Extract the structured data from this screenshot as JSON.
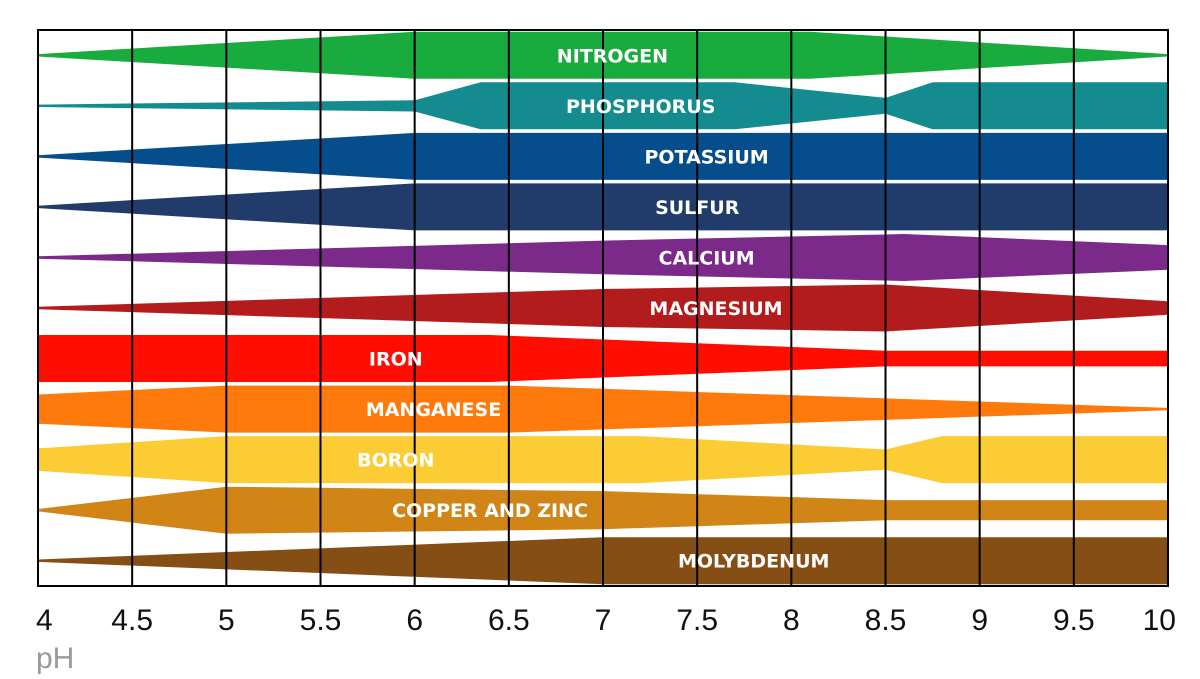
{
  "chart_data": {
    "type": "area",
    "title": "",
    "xlabel": "pH",
    "ylabel": "",
    "xlim": [
      4,
      10
    ],
    "x_ticks": [
      {
        "value": 4,
        "label": "4"
      },
      {
        "value": 4.5,
        "label": "4.5"
      },
      {
        "value": 5,
        "label": "5"
      },
      {
        "value": 5.5,
        "label": "5.5"
      },
      {
        "value": 6,
        "label": "6"
      },
      {
        "value": 6.5,
        "label": "6.5"
      },
      {
        "value": 7,
        "label": "7"
      },
      {
        "value": 7.5,
        "label": "7.5"
      },
      {
        "value": 8,
        "label": "8"
      },
      {
        "value": 8.5,
        "label": "8.5"
      },
      {
        "value": 9,
        "label": "9"
      },
      {
        "value": 9.5,
        "label": "9.5"
      },
      {
        "value": 10,
        "label": "10"
      }
    ],
    "grid": "vertical",
    "series": [
      {
        "name": "NITROGEN",
        "color": "#1aab3f",
        "label_ph": 7.05,
        "availability": [
          [
            4.0,
            0.0
          ],
          [
            6.0,
            1.0
          ],
          [
            8.1,
            1.0
          ],
          [
            10.0,
            0.0
          ]
        ]
      },
      {
        "name": "PHOSPHORUS",
        "color": "#148c8f",
        "label_ph": 7.2,
        "availability": [
          [
            4.0,
            0.0
          ],
          [
            6.0,
            0.2
          ],
          [
            6.35,
            1.0
          ],
          [
            7.7,
            1.0
          ],
          [
            8.5,
            0.3
          ],
          [
            8.75,
            1.0
          ],
          [
            10.0,
            1.0
          ]
        ]
      },
      {
        "name": "POTASSIUM",
        "color": "#064d8c",
        "label_ph": 7.55,
        "availability": [
          [
            4.0,
            0.0
          ],
          [
            6.0,
            1.0
          ],
          [
            10.0,
            1.0
          ]
        ]
      },
      {
        "name": "SULFUR",
        "color": "#213c6b",
        "label_ph": 7.5,
        "availability": [
          [
            4.0,
            0.0
          ],
          [
            6.0,
            1.0
          ],
          [
            10.0,
            1.0
          ]
        ]
      },
      {
        "name": "CALCIUM",
        "color": "#7b2a8a",
        "label_ph": 7.55,
        "availability": [
          [
            4.0,
            0.0
          ],
          [
            7.0,
            0.7
          ],
          [
            8.6,
            1.0
          ],
          [
            10.0,
            0.5
          ]
        ]
      },
      {
        "name": "MAGNESIUM",
        "color": "#b31c1c",
        "label_ph": 7.6,
        "availability": [
          [
            4.0,
            0.0
          ],
          [
            7.0,
            0.8
          ],
          [
            8.5,
            1.0
          ],
          [
            10.0,
            0.25
          ]
        ]
      },
      {
        "name": "IRON",
        "color": "#ff0d00",
        "label_ph": 5.9,
        "availability": [
          [
            4.0,
            1.0
          ],
          [
            6.4,
            1.0
          ],
          [
            8.5,
            0.3
          ],
          [
            10.0,
            0.3
          ]
        ]
      },
      {
        "name": "MANGANESE",
        "color": "#ff7a0d",
        "label_ph": 6.1,
        "availability": [
          [
            4.0,
            0.6
          ],
          [
            5.0,
            1.0
          ],
          [
            6.5,
            1.0
          ],
          [
            10.0,
            0.0
          ]
        ]
      },
      {
        "name": "BORON",
        "color": "#fccc35",
        "label_ph": 5.9,
        "availability": [
          [
            4.0,
            0.45
          ],
          [
            5.0,
            1.0
          ],
          [
            7.2,
            1.0
          ],
          [
            8.5,
            0.4
          ],
          [
            8.8,
            1.0
          ],
          [
            10.0,
            1.0
          ]
        ]
      },
      {
        "name": "COPPER AND ZINC",
        "color": "#d18517",
        "label_ph": 6.4,
        "availability": [
          [
            4.0,
            0.0
          ],
          [
            5.0,
            1.0
          ],
          [
            7.0,
            0.8
          ],
          [
            8.5,
            0.4
          ],
          [
            10.0,
            0.4
          ]
        ]
      },
      {
        "name": "MOLYBDENUM",
        "color": "#854e14",
        "label_ph": 7.8,
        "availability": [
          [
            4.0,
            0.0
          ],
          [
            7.0,
            1.0
          ],
          [
            10.0,
            1.0
          ]
        ]
      }
    ]
  }
}
